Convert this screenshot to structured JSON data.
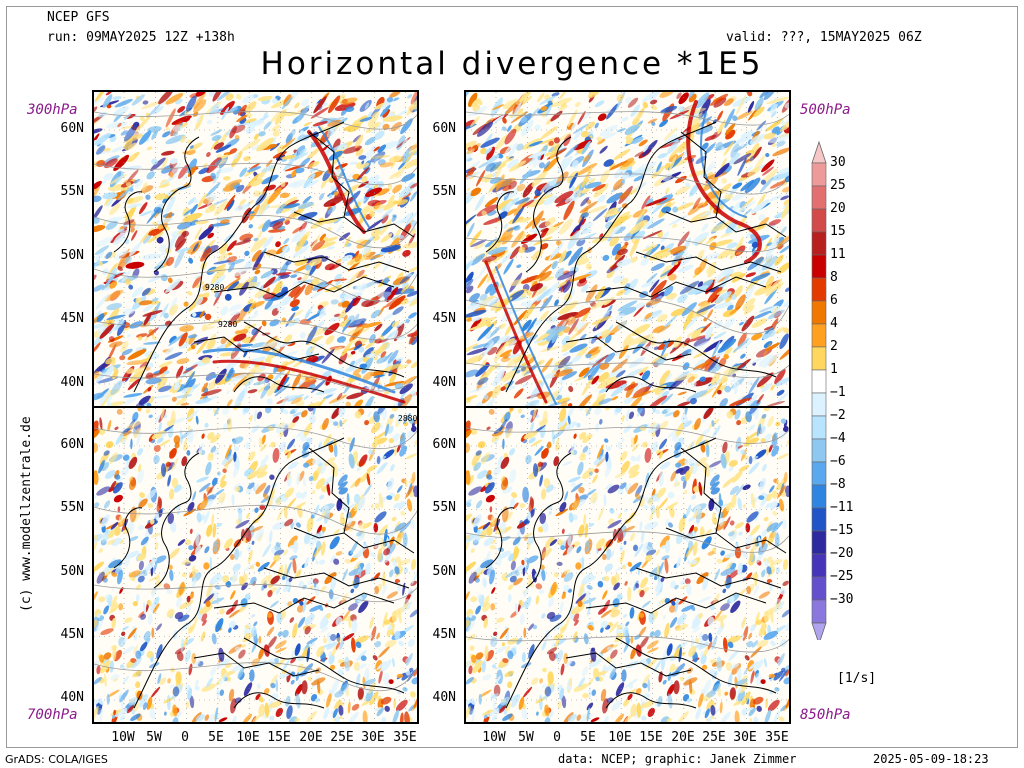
{
  "header": {
    "model": "NCEP GFS",
    "run": "run: 09MAY2025 12Z +138h",
    "valid": "valid: ???, 15MAY2025 06Z",
    "title": "Horizontal divergence *1E5"
  },
  "panels": [
    {
      "level": "300hPa",
      "labels": [
        "9280",
        "9280"
      ]
    },
    {
      "level": "500hPa",
      "labels": []
    },
    {
      "level": "700hPa",
      "labels": [
        "2880"
      ]
    },
    {
      "level": "850hPa",
      "labels": []
    }
  ],
  "axes": {
    "lat_top": [
      "60N",
      "55N",
      "50N",
      "45N",
      "40N"
    ],
    "lat_bottom": [
      "60N",
      "55N",
      "50N",
      "45N",
      "40N"
    ],
    "lon": [
      "10W",
      "5W",
      "0",
      "5E",
      "10E",
      "15E",
      "20E",
      "25E",
      "30E",
      "35E"
    ]
  },
  "colorbar": {
    "unit": "[1/s]",
    "levels": [
      "30",
      "25",
      "20",
      "15",
      "11",
      "8",
      "6",
      "4",
      "2",
      "1",
      "−1",
      "−2",
      "−4",
      "−6",
      "−8",
      "−11",
      "−15",
      "−20",
      "−25",
      "−30"
    ],
    "colors": [
      "#f7c6c6",
      "#ee9a9a",
      "#e27070",
      "#d24a4a",
      "#b82020",
      "#c80000",
      "#e33a00",
      "#f07800",
      "#ffa020",
      "#ffd75f",
      "#ffffff",
      "#dcf2ff",
      "#b8e4ff",
      "#8ec8f0",
      "#5aa8ee",
      "#2f86e0",
      "#1f55c6",
      "#2c2a9e",
      "#4635b8",
      "#6450cc",
      "#8a78de",
      "#b0a4ee"
    ]
  },
  "side_text": "(c) www.modellzentrale.de",
  "footer": {
    "left": "GrADS: COLA/IGES",
    "middle": "data: NCEP; graphic: Janek Zimmer",
    "right": "2025-05-09-18:23"
  }
}
